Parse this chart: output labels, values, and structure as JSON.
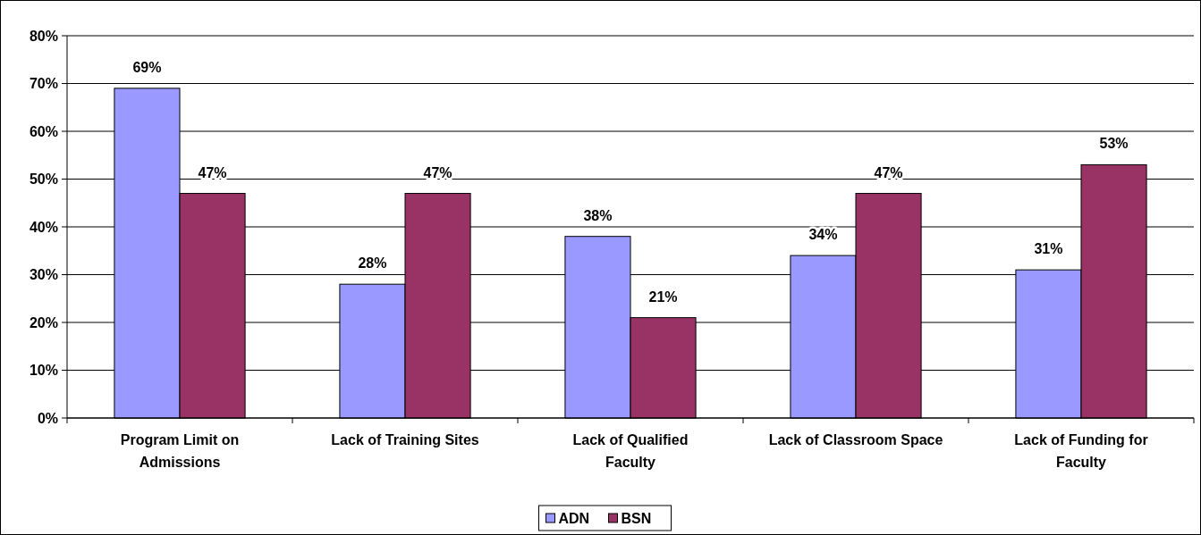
{
  "chart_data": {
    "type": "bar",
    "categories": [
      "Program Limit on Admissions",
      "Lack of Training Sites",
      "Lack of Qualified Faculty",
      "Lack of Classroom Space",
      "Lack of Funding for Faculty"
    ],
    "series": [
      {
        "name": "ADN",
        "color": "#9999ff",
        "values": [
          69,
          28,
          38,
          34,
          31
        ],
        "value_labels": [
          "69%",
          "28%",
          "38%",
          "34%",
          "31%"
        ]
      },
      {
        "name": "BSN",
        "color": "#993366",
        "values": [
          47,
          47,
          21,
          47,
          53
        ],
        "value_labels": [
          "47%",
          "47%",
          "21%",
          "47%",
          "53%"
        ]
      }
    ],
    "ylim": [
      0,
      80
    ],
    "yticks": [
      {
        "value": 0,
        "label": "0%"
      },
      {
        "value": 10,
        "label": "10%"
      },
      {
        "value": 20,
        "label": "20%"
      },
      {
        "value": 30,
        "label": "30%"
      },
      {
        "value": 40,
        "label": "40%"
      },
      {
        "value": 50,
        "label": "50%"
      },
      {
        "value": 60,
        "label": "60%"
      },
      {
        "value": 70,
        "label": "70%"
      },
      {
        "value": 80,
        "label": "80%"
      }
    ],
    "grid": "y",
    "legend": "bottom"
  }
}
